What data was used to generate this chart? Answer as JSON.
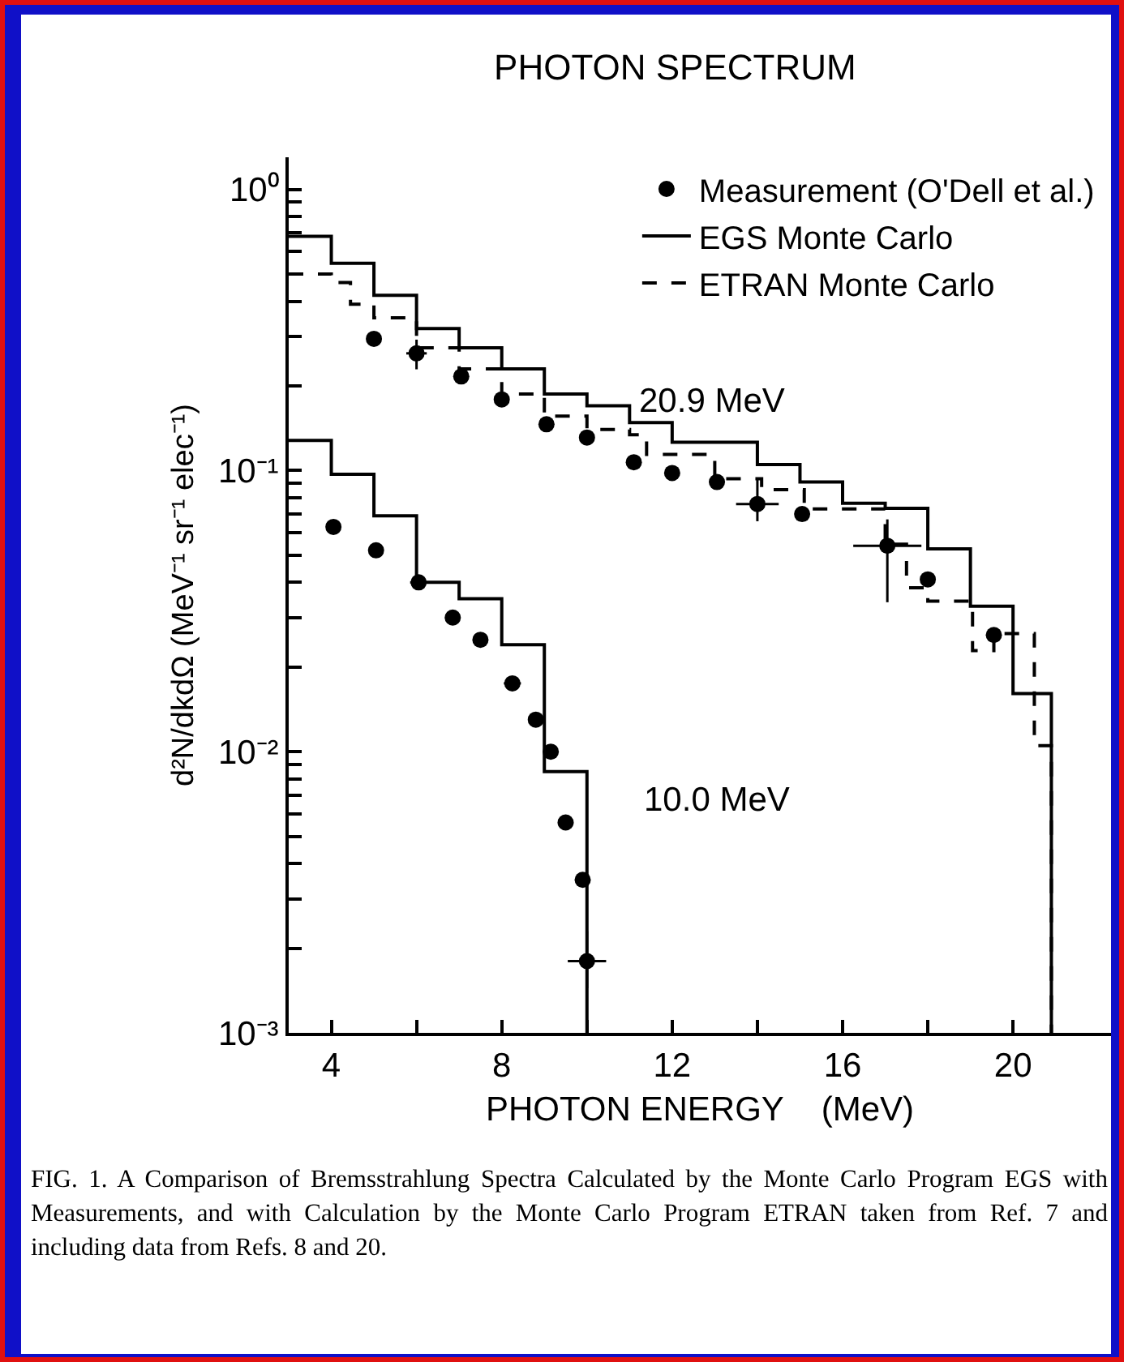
{
  "chart_data": {
    "type": "step",
    "title": "PHOTON SPECTRUM",
    "xlabel": "PHOTON ENERGY    (MeV)",
    "ylabel": "d²N/dkdΩ (MeV⁻¹ sr⁻¹ elec⁻¹)",
    "xlim": [
      3,
      22.3
    ],
    "xticks": [
      4,
      {
        "value": 6,
        "label": null
      },
      8,
      {
        "value": 10,
        "label": null
      },
      12,
      {
        "value": 14,
        "label": null
      },
      16,
      {
        "value": 18,
        "label": null
      },
      20
    ],
    "ylim": [
      0.001,
      1.3
    ],
    "yticks": [
      {
        "value": 0.001,
        "label": "10⁻³"
      },
      {
        "value": 0.002,
        "label": null
      },
      {
        "value": 0.003,
        "label": null
      },
      {
        "value": 0.004,
        "label": null
      },
      {
        "value": 0.005,
        "label": null
      },
      {
        "value": 0.006,
        "label": null
      },
      {
        "value": 0.007,
        "label": null
      },
      {
        "value": 0.008,
        "label": null
      },
      {
        "value": 0.009,
        "label": null
      },
      {
        "value": 0.01,
        "label": "10⁻²"
      },
      {
        "value": 0.02,
        "label": null
      },
      {
        "value": 0.03,
        "label": null
      },
      {
        "value": 0.04,
        "label": null
      },
      {
        "value": 0.05,
        "label": null
      },
      {
        "value": 0.06,
        "label": null
      },
      {
        "value": 0.07,
        "label": null
      },
      {
        "value": 0.08,
        "label": null
      },
      {
        "value": 0.09,
        "label": null
      },
      {
        "value": 0.1,
        "label": "10⁻¹"
      },
      {
        "value": 0.2,
        "label": null
      },
      {
        "value": 0.3,
        "label": null
      },
      {
        "value": 0.4,
        "label": null
      },
      {
        "value": 0.5,
        "label": null
      },
      {
        "value": 0.6,
        "label": null
      },
      {
        "value": 0.7,
        "label": null
      },
      {
        "value": 0.8,
        "label": null
      },
      {
        "value": 0.9,
        "label": null
      },
      {
        "value": 1,
        "label": "10⁰"
      }
    ],
    "log": true,
    "grid": false,
    "legend": "top right",
    "series": [
      {
        "type": "scatter",
        "name": "Measurement (O'Dell et al.)",
        "color": "#000000",
        "marker": "circle",
        "x": [
          5.0,
          6.0,
          7.05,
          8.0,
          9.05,
          10.0,
          11.1,
          12.0,
          13.05,
          14.0,
          15.05,
          17.05,
          18.0,
          19.55,
          4.05,
          5.05,
          6.05,
          6.85,
          7.5,
          8.25,
          8.8,
          9.15,
          9.5,
          9.9,
          10.0
        ],
        "values": [
          0.294,
          0.261,
          0.216,
          0.179,
          0.146,
          0.131,
          0.107,
          0.098,
          0.091,
          0.076,
          0.07,
          0.054,
          0.041,
          0.026,
          0.063,
          0.052,
          0.04,
          0.03,
          0.025,
          0.0175,
          0.013,
          0.01,
          0.0056,
          0.0035,
          0.0018
        ],
        "errors": [
          null,
          [
            0.229,
            0.292
          ],
          null,
          null,
          null,
          null,
          null,
          null,
          null,
          [
            0.066,
            0.093
          ],
          null,
          [
            0.034,
            0.067
          ],
          null,
          null,
          null,
          null,
          null,
          null,
          null,
          null,
          null,
          null,
          null,
          null,
          [
            0.00144,
            0.0023
          ]
        ],
        "xerrors": [
          null,
          0.24,
          null,
          null,
          null,
          null,
          null,
          null,
          null,
          0.5,
          null,
          0.8,
          null,
          null,
          null,
          null,
          0.2,
          null,
          null,
          0.2,
          null,
          null,
          null,
          null,
          0.45
        ]
      },
      {
        "name": "EGS Monte Carlo",
        "color": "#000000",
        "line_style": "solid",
        "x": [
          3,
          4,
          5,
          6,
          7,
          8,
          9,
          10,
          11,
          12,
          14,
          15,
          16,
          17,
          18,
          19,
          20,
          20.9
        ],
        "values": [
          0.68,
          0.546,
          0.42,
          0.32,
          0.273,
          0.23,
          0.187,
          0.17,
          0.148,
          0.126,
          0.105,
          0.091,
          0.0765,
          0.0734,
          0.0526,
          0.0329,
          0.0161,
          0.001
        ]
      },
      {
        "color": "#000000",
        "line_style": "solid",
        "x": [
          3,
          4,
          5,
          6,
          7,
          8,
          9,
          10
        ],
        "values": [
          0.128,
          0.097,
          0.069,
          0.04,
          0.035,
          0.024,
          0.0085,
          0.001
        ]
      },
      {
        "name": "ETRAN Monte Carlo",
        "color": "#000000",
        "line_style": "dashed",
        "x": [
          3,
          4,
          4.45,
          5,
          6,
          7,
          8,
          9,
          10,
          11,
          11.4,
          13,
          14.1,
          15.1,
          17,
          17.5,
          18,
          19.05,
          19.55,
          20.5,
          20.9
        ],
        "values": [
          0.5,
          0.466,
          0.39,
          0.349,
          0.273,
          0.23,
          0.187,
          0.156,
          0.14,
          0.134,
          0.114,
          0.0935,
          0.0855,
          0.073,
          0.0547,
          0.0383,
          0.0343,
          0.0229,
          0.0263,
          0.0105,
          0.001
        ]
      }
    ],
    "annotations": [
      "20.9 MeV",
      "10.0 MeV",
      "FIG. 1.  A Comparison of Bremsstrahlung Spectra Calculated by the Monte Carlo Program EGS with Measurements, and with Calculation by the Monte Carlo Program ETRAN taken from Ref. 7 and including data from Refs. 8 and 20."
    ]
  }
}
